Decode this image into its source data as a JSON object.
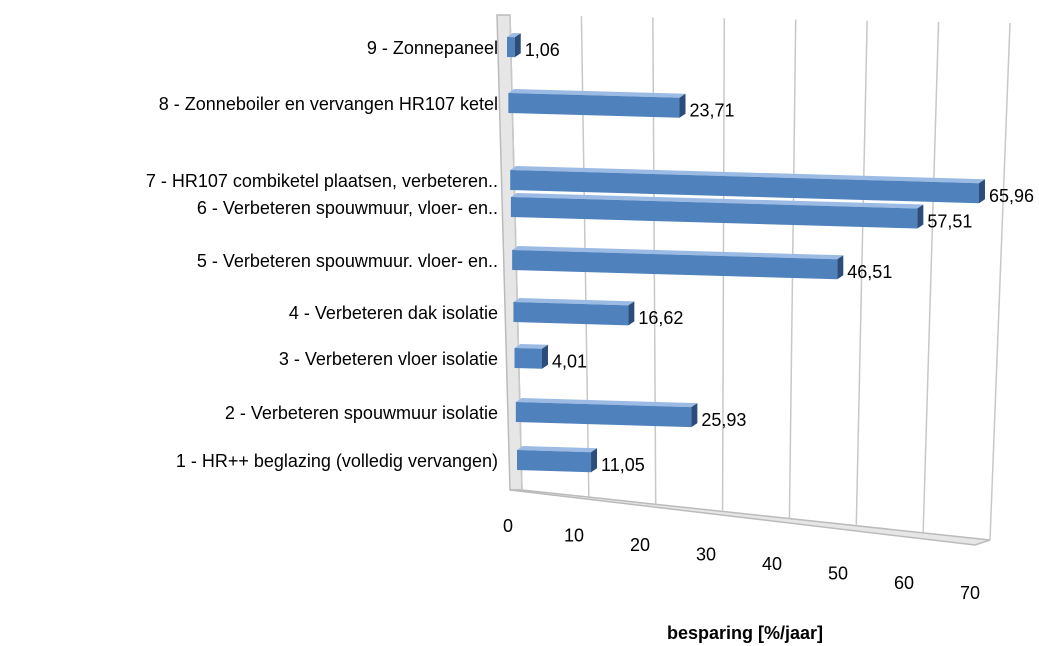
{
  "chart_data": {
    "type": "bar",
    "orientation": "horizontal",
    "3d": true,
    "categories": [
      "1 - HR++ beglazing (volledig vervangen)",
      "2 - Verbeteren spouwmuur isolatie",
      "3 - Verbeteren vloer isolatie",
      "4 - Verbeteren dak isolatie",
      "5 - Verbeteren spouwmuur. vloer- en..",
      "6 - Verbeteren spouwmuur, vloer- en..",
      "7 - HR107 combiketel plaatsen, verbeteren..",
      "8 - Zonneboiler en vervangen HR107 ketel",
      "9 - Zonnepaneel"
    ],
    "values": [
      11.05,
      25.93,
      4.01,
      16.62,
      46.51,
      57.51,
      65.96,
      23.71,
      1.06
    ],
    "value_labels": [
      "11,05",
      "25,93",
      "4,01",
      "16,62",
      "46,51",
      "57,51",
      "65,96",
      "23,71",
      "1,06"
    ],
    "color": "#4f81bd",
    "xlim": [
      0,
      70
    ],
    "xticks": [
      0,
      10,
      20,
      30,
      40,
      50,
      60,
      70
    ],
    "xlabel": "besparing [%/jaar]",
    "grid": true
  }
}
